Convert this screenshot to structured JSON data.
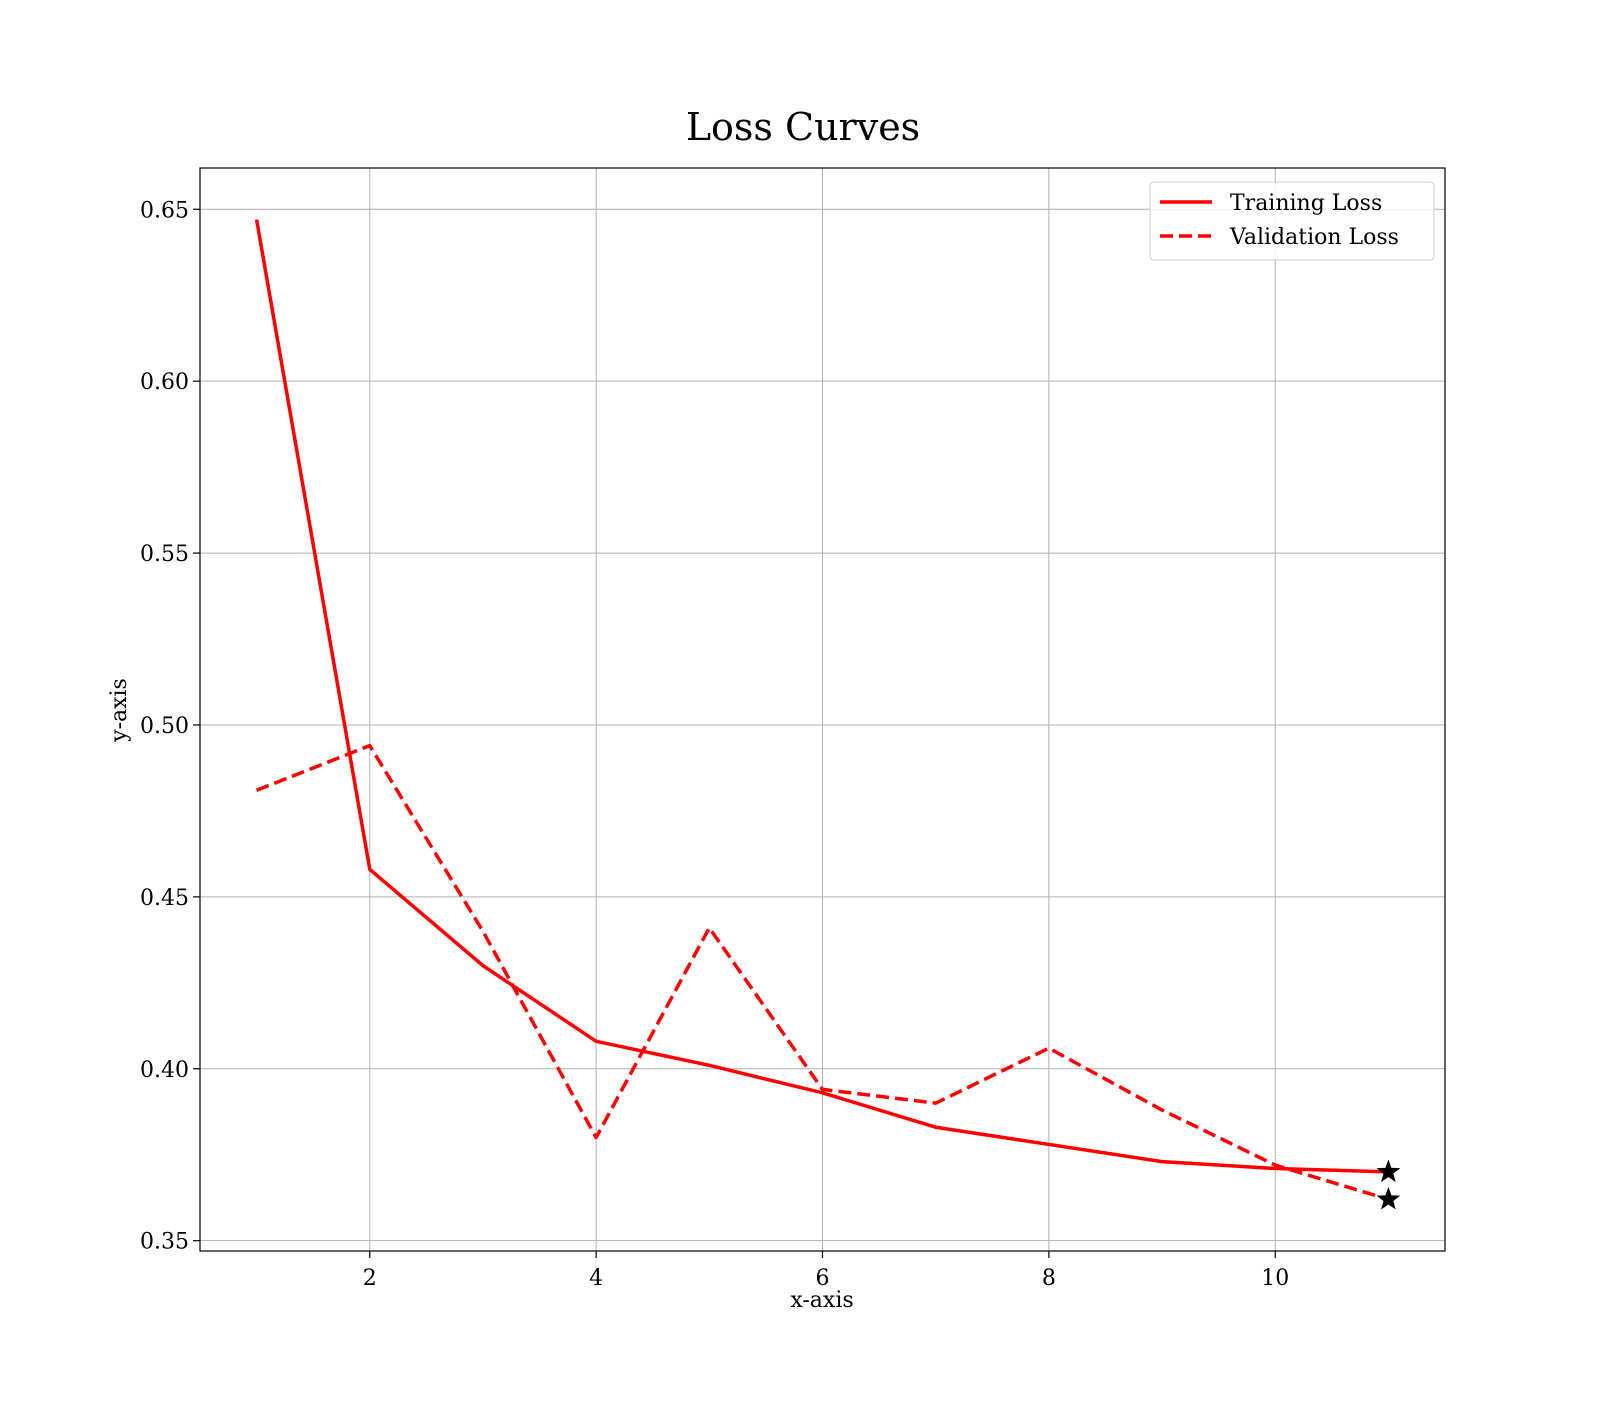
{
  "chart_data": {
    "type": "line",
    "title": "Loss Curves",
    "xlabel": "x-axis",
    "ylabel": "y-axis",
    "x": [
      1,
      2,
      3,
      4,
      5,
      6,
      7,
      8,
      9,
      10,
      11
    ],
    "xlim": [
      0.5,
      11.5
    ],
    "ylim": [
      0.347,
      0.662
    ],
    "xticks": [
      2,
      4,
      6,
      8,
      10
    ],
    "yticks": [
      0.35,
      0.4,
      0.45,
      0.5,
      0.55,
      0.6,
      0.65
    ],
    "xtick_labels": [
      "2",
      "4",
      "6",
      "8",
      "10"
    ],
    "ytick_labels": [
      "0.35",
      "0.40",
      "0.45",
      "0.50",
      "0.55",
      "0.60",
      "0.65"
    ],
    "grid": true,
    "legend_position": "top-right",
    "series": [
      {
        "name": "Training Loss",
        "line_style": "solid",
        "color": "#ff0000",
        "values": [
          0.647,
          0.458,
          0.43,
          0.408,
          0.401,
          0.393,
          0.383,
          0.378,
          0.373,
          0.371,
          0.37
        ],
        "end_marker": "star"
      },
      {
        "name": "Validation Loss",
        "line_style": "dashed",
        "color": "#ff0000",
        "values": [
          0.481,
          0.494,
          0.44,
          0.38,
          0.441,
          0.394,
          0.39,
          0.406,
          0.388,
          0.372,
          0.362
        ],
        "end_marker": "star"
      }
    ],
    "colors": {
      "line": "#ff0000",
      "marker": "#000000",
      "grid": "#b0b0b0",
      "frame": "#000000",
      "legend_border": "#cccccc"
    }
  }
}
